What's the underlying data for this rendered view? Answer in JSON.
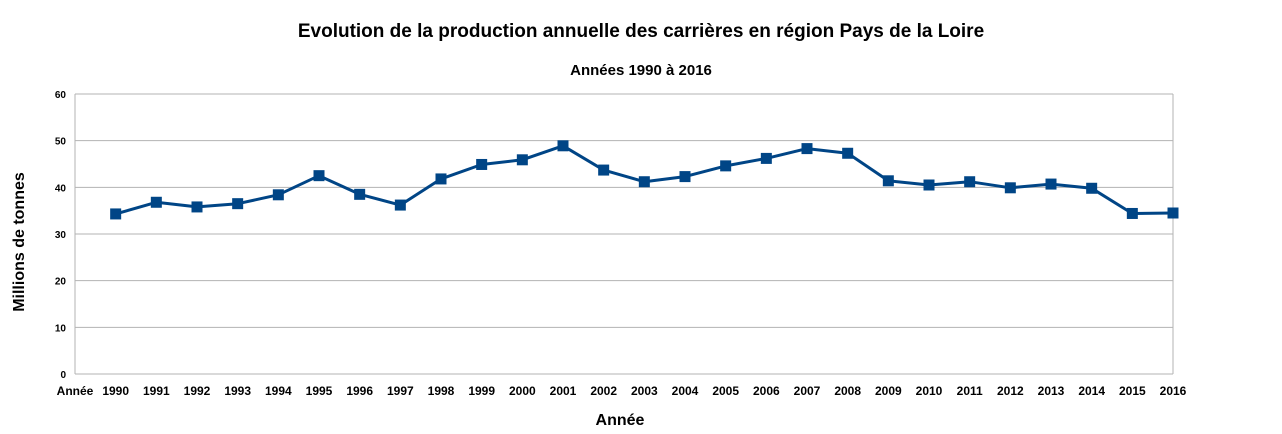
{
  "chart_data": {
    "type": "line",
    "title": "Evolution de la production annuelle des carrières en région Pays de la Loire",
    "subtitle": "Années 1990 à 2016",
    "xlabel": "Année",
    "ylabel": "Millions de tonnes",
    "first_category_label": "Année",
    "categories": [
      "1990",
      "1991",
      "1992",
      "1993",
      "1994",
      "1995",
      "1996",
      "1997",
      "1998",
      "1999",
      "2000",
      "2001",
      "2002",
      "2003",
      "2004",
      "2005",
      "2006",
      "2007",
      "2008",
      "2009",
      "2010",
      "2011",
      "2012",
      "2013",
      "2014",
      "2015",
      "2016"
    ],
    "series": [
      {
        "values": [
          34.3,
          36.8,
          35.8,
          36.5,
          38.4,
          42.5,
          38.5,
          36.2,
          41.8,
          44.9,
          45.9,
          48.9,
          43.7,
          41.2,
          42.3,
          44.6,
          46.2,
          48.3,
          47.3,
          41.4,
          40.5,
          41.2,
          39.9,
          40.7,
          39.8,
          34.4,
          34.5
        ],
        "color": "#004586"
      }
    ],
    "ylim": [
      0,
      60
    ],
    "yticks": [
      0,
      10,
      20,
      30,
      40,
      50,
      60
    ],
    "grid": true,
    "legend": "none"
  }
}
